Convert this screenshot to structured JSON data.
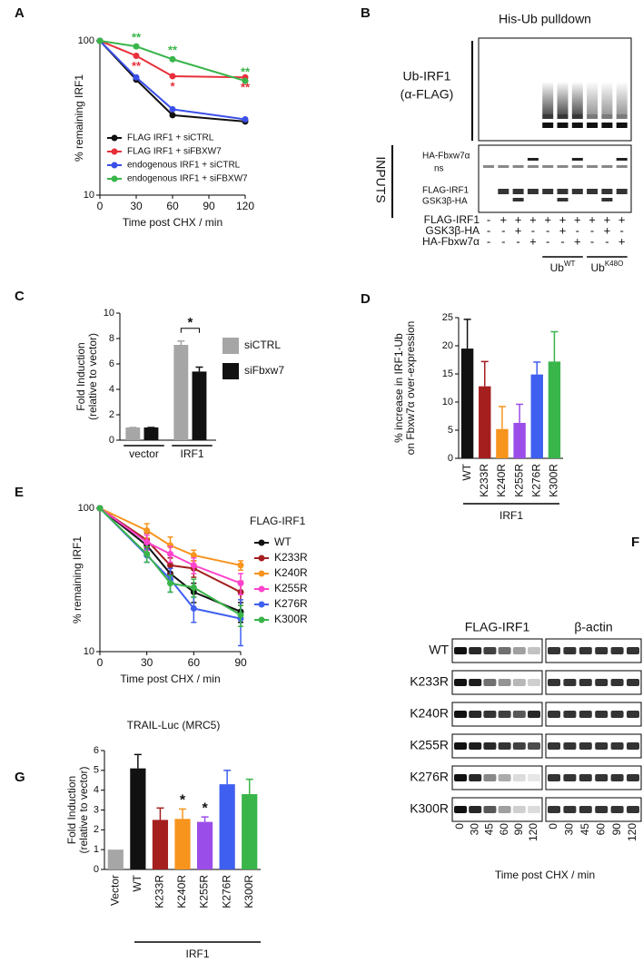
{
  "chart_data": [
    {
      "panel": "A",
      "type": "line",
      "log_y": true,
      "xlabel": "Time post CHX / min",
      "ylabel": [
        "% remaining IRF1"
      ],
      "x": [
        0,
        30,
        60,
        120
      ],
      "xlim": [
        0,
        120
      ],
      "xticks": [
        0,
        30,
        60,
        90,
        120
      ],
      "ylim": [
        10,
        100
      ],
      "yticks": [
        10,
        100
      ],
      "series": [
        {
          "name": "FLAG IRF1 + siCTRL",
          "color": "#111111",
          "values": [
            100,
            56,
            33,
            30
          ]
        },
        {
          "name": "FLAG IRF1 + siFBXW7",
          "color": "#e8303a",
          "values": [
            100,
            80,
            59,
            58
          ]
        },
        {
          "name": "endogenous IRF1 + siCTRL",
          "color": "#3a4ee8",
          "values": [
            100,
            58,
            36,
            31
          ]
        },
        {
          "name": "endogenous IRF1 + siFBXW7",
          "color": "#39b54a",
          "values": [
            100,
            92,
            76,
            55
          ]
        }
      ],
      "annotations": [
        {
          "text": "**",
          "color": "#39b54a"
        },
        {
          "text": "**",
          "color": "#e8303a"
        },
        {
          "text": "**",
          "color": "#39b54a"
        },
        {
          "text": "*",
          "color": "#e8303a"
        },
        {
          "text": "**",
          "color": "#39b54a"
        },
        {
          "text": "**",
          "color": "#e8303a"
        }
      ]
    },
    {
      "panel": "C",
      "type": "bar",
      "ylabel": [
        "Fold Induction",
        "(relative to vector)"
      ],
      "categories": [
        "vector",
        "IRF1"
      ],
      "ylim": [
        0,
        10
      ],
      "yticks": [
        0,
        2,
        4,
        6,
        8,
        10
      ],
      "series": [
        {
          "name": "siCTRL",
          "color": "#a6a6a6",
          "values": [
            1,
            7.5
          ],
          "errors": [
            0,
            0.3
          ]
        },
        {
          "name": "siFbxw7",
          "color": "#111111",
          "values": [
            1,
            5.4
          ],
          "errors": [
            0,
            0.35
          ]
        }
      ],
      "annotations": [
        {
          "text": "*",
          "color": "#111111"
        }
      ]
    },
    {
      "panel": "D",
      "type": "bar",
      "ylabel": [
        "% increase in IRF1-Ub",
        "on Fbxw7α over-expression"
      ],
      "categories": [
        "WT",
        "K233R",
        "K240R",
        "K255R",
        "K276R",
        "K300R"
      ],
      "group_label": "IRF1",
      "values": [
        19.5,
        12.8,
        5.2,
        6.3,
        14.9,
        17.2
      ],
      "errors": [
        5.2,
        4.4,
        4.0,
        3.3,
        2.2,
        5.3
      ],
      "colors": [
        "#111111",
        "#a51f1f",
        "#f7941d",
        "#9b4dea",
        "#3f5ff0",
        "#39b54a"
      ],
      "ylim": [
        0,
        25
      ],
      "yticks": [
        0,
        5,
        10,
        15,
        20,
        25
      ]
    },
    {
      "panel": "E",
      "type": "line",
      "log_y": true,
      "xlabel": "Time post CHX / min",
      "ylabel": [
        "% remaining IRF1"
      ],
      "legend_title": "FLAG-IRF1",
      "x": [
        0,
        30,
        45,
        60,
        90
      ],
      "xlim": [
        0,
        90
      ],
      "xticks": [
        0,
        30,
        60,
        90
      ],
      "ylim": [
        10,
        100
      ],
      "yticks": [
        10,
        100
      ],
      "series": [
        {
          "name": "WT",
          "color": "#111111",
          "values": [
            100,
            55,
            35,
            26,
            19
          ],
          "errors": [
            0,
            6,
            5,
            4,
            3
          ]
        },
        {
          "name": "K233R",
          "color": "#a51f1f",
          "values": [
            100,
            60,
            40,
            38,
            26
          ],
          "errors": [
            0,
            7,
            5,
            5,
            5
          ]
        },
        {
          "name": "K240R",
          "color": "#f7941d",
          "values": [
            100,
            70,
            55,
            47,
            40
          ],
          "errors": [
            0,
            8,
            8,
            4,
            3
          ]
        },
        {
          "name": "K255R",
          "color": "#ff44cc",
          "values": [
            100,
            58,
            48,
            40,
            30
          ],
          "errors": [
            0,
            7,
            6,
            5,
            5
          ]
        },
        {
          "name": "K276R",
          "color": "#3f5ff0",
          "values": [
            100,
            47,
            32,
            20,
            17
          ],
          "errors": [
            0,
            5,
            6,
            4,
            6
          ]
        },
        {
          "name": "K300R",
          "color": "#39b54a",
          "values": [
            100,
            48,
            30,
            28,
            18
          ],
          "errors": [
            0,
            6,
            4,
            4,
            3
          ]
        }
      ]
    },
    {
      "panel": "G",
      "type": "bar",
      "title": "TRAIL-Luc (MRC5)",
      "ylabel": [
        "Fold Induction",
        "(relative to vector)"
      ],
      "categories": [
        "Vector",
        "WT",
        "K233R",
        "K240R",
        "K255R",
        "K276R",
        "K300R"
      ],
      "group_label": "IRF1",
      "values": [
        1,
        5.1,
        2.5,
        2.55,
        2.4,
        4.3,
        3.8
      ],
      "errors": [
        0,
        0.7,
        0.6,
        0.5,
        0.25,
        0.7,
        0.75
      ],
      "colors": [
        "#a6a6a6",
        "#111111",
        "#a51f1f",
        "#f7941d",
        "#9b4dea",
        "#3f5ff0",
        "#39b54a"
      ],
      "ylim": [
        0,
        6
      ],
      "yticks": [
        0,
        1,
        2,
        3,
        4,
        5,
        6
      ],
      "annotations": [
        {
          "text": "*",
          "color": "#111111"
        },
        {
          "text": "*",
          "color": "#111111"
        }
      ]
    }
  ],
  "blots": {
    "B": {
      "panel": "B",
      "title": "His-Ub pulldown",
      "blot_label": [
        "Ub-IRF1",
        "(α-FLAG)"
      ],
      "inputs_label": "INPUTS",
      "input_bands": [
        "HA-Fbxw7α",
        "ns",
        "FLAG-IRF1",
        "GSK3β-HA"
      ],
      "conditions": [
        {
          "name": "FLAG-IRF1",
          "signs": [
            "-",
            "+",
            "+",
            "+",
            "+",
            "+",
            "+",
            "+",
            "+",
            "+"
          ]
        },
        {
          "name": "GSK3β-HA",
          "signs": [
            "-",
            "-",
            "+",
            "-",
            "-",
            "+",
            "-",
            "-",
            "+",
            "-"
          ]
        },
        {
          "name": "HA-Fbxw7α",
          "signs": [
            "-",
            "-",
            "-",
            "+",
            "-",
            "-",
            "+",
            "-",
            "-",
            "+"
          ]
        }
      ],
      "groups": [
        {
          "text": "Ub",
          "sup": "WT"
        },
        {
          "text": "Ub",
          "sup": "K48O"
        }
      ]
    },
    "F": {
      "panel": "F",
      "columns": [
        "FLAG-IRF1",
        "β-actin"
      ],
      "rows": [
        "WT",
        "K233R",
        "K240R",
        "K255R",
        "K276R",
        "K300R"
      ],
      "lanes": [
        0,
        30,
        45,
        60,
        90,
        120
      ],
      "xlabel": "Time post CHX / min"
    }
  }
}
